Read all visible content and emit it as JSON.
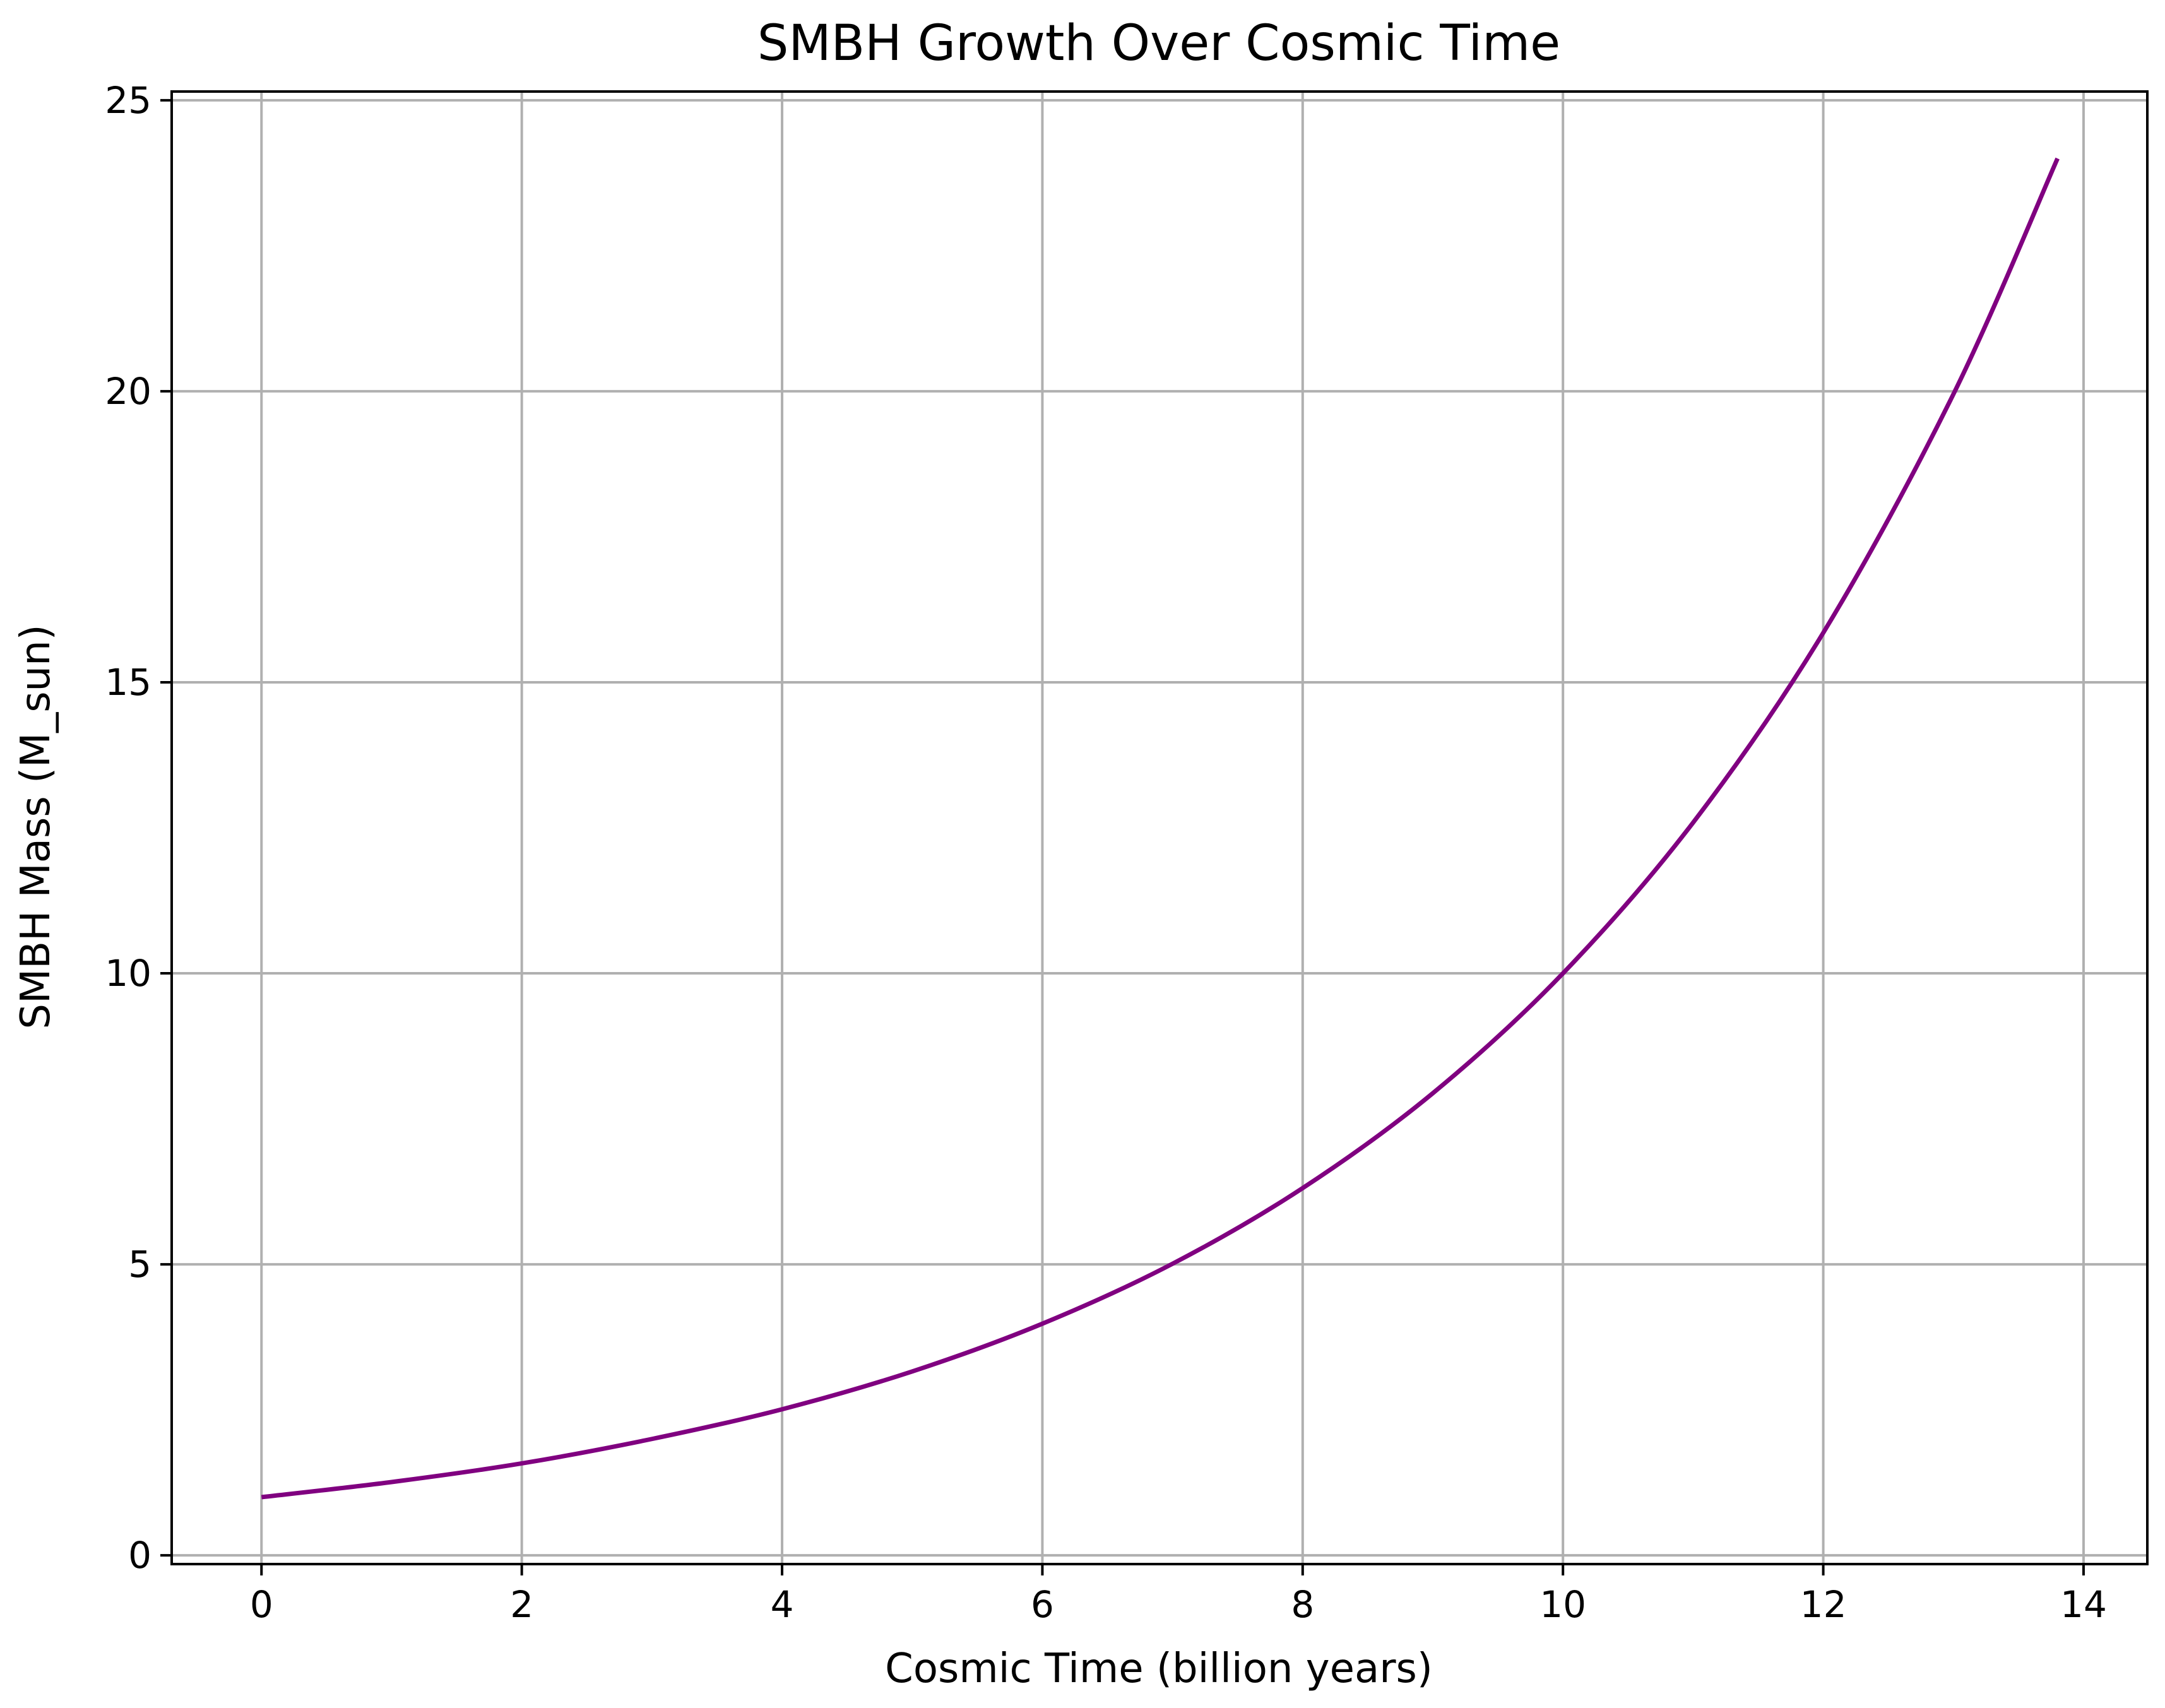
{
  "chart_data": {
    "type": "line",
    "title": "SMBH Growth Over Cosmic Time",
    "xlabel": "Cosmic Time (billion years)",
    "ylabel": "SMBH Mass (M_sun)",
    "xlim": [
      -0.69,
      14.49
    ],
    "ylim": [
      -0.15,
      25.15
    ],
    "xticks": [
      0,
      2,
      4,
      6,
      8,
      10,
      12,
      14
    ],
    "yticks": [
      0,
      5,
      10,
      15,
      20,
      25
    ],
    "xtick_labels": [
      "0",
      "2",
      "4",
      "6",
      "8",
      "10",
      "12",
      "14"
    ],
    "ytick_labels": [
      "0",
      "5",
      "10",
      "15",
      "20",
      "25"
    ],
    "grid": true,
    "legend": "none",
    "line_color": "#800080",
    "series": [
      {
        "x": [
          0,
          1,
          2,
          3,
          4,
          5,
          6,
          7,
          8,
          9,
          10,
          11,
          12,
          13,
          13.8
        ],
        "y": [
          1.0,
          1.26,
          1.58,
          2.0,
          2.51,
          3.16,
          3.98,
          5.01,
          6.31,
          7.94,
          10.0,
          12.59,
          15.85,
          19.95,
          24.0
        ]
      }
    ]
  }
}
